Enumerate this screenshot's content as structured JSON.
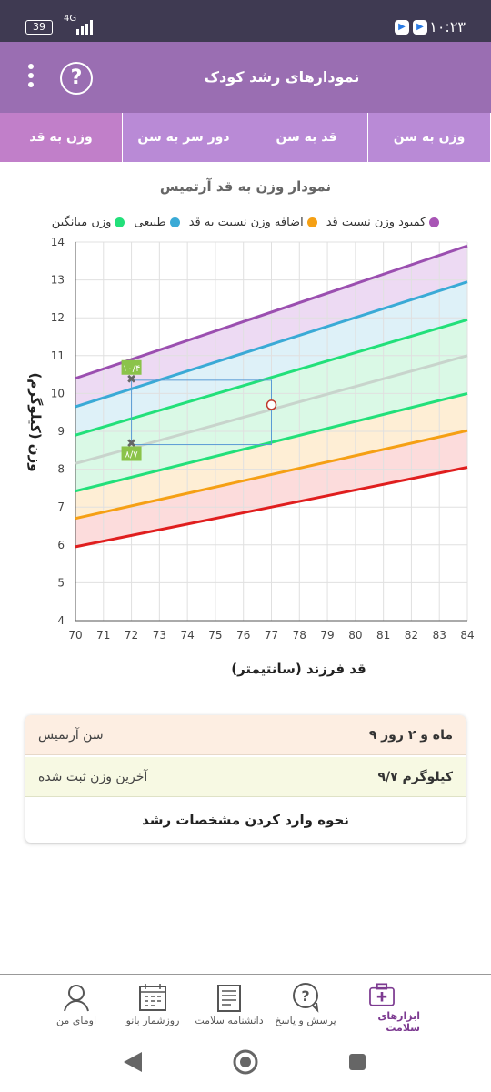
{
  "status_bar": {
    "battery": "39",
    "network": "4G",
    "time": "۱۰:۲۳"
  },
  "app_bar": {
    "title": "نمودارهای رشد کودک",
    "help_icon": "question-circle-icon",
    "menu_icon": "kebab-menu-icon"
  },
  "tabs": [
    {
      "label": "وزن به سن",
      "active": false
    },
    {
      "label": "قد به سن",
      "active": false
    },
    {
      "label": "دور سر به سن",
      "active": false
    },
    {
      "label": "وزن به قد",
      "active": true
    }
  ],
  "chart_title": "نمودار وزن به قد  آرتمیس",
  "legend": [
    {
      "label": "کمبود وزن نسبت قد",
      "color": "#a855b5"
    },
    {
      "label": "اضافه وزن نسبت به قد",
      "color": "#3aaad6"
    },
    {
      "label": "طبیعی",
      "color": "#22e07a"
    },
    {
      "label": "وزن میانگین",
      "color": "#cccccc"
    }
  ],
  "chart_data": {
    "type": "line",
    "xlabel": "قد فرزند (سانتیمتر)",
    "ylabel": "وزن (کیلوگرم)",
    "xlim": [
      70,
      84
    ],
    "ylim": [
      4,
      14
    ],
    "x_ticks": [
      70,
      71,
      72,
      73,
      74,
      75,
      76,
      77,
      78,
      79,
      80,
      81,
      82,
      83,
      84
    ],
    "y_ticks": [
      4,
      5,
      6,
      7,
      8,
      9,
      10,
      11,
      12,
      13,
      14
    ],
    "grid": true,
    "series": [
      {
        "color": "#9b4fb0",
        "x": [
          70,
          84
        ],
        "y": [
          10.4,
          13.9
        ]
      },
      {
        "color": "#3aaad6",
        "x": [
          70,
          84
        ],
        "y": [
          9.65,
          12.95
        ]
      },
      {
        "color": "#22e07a",
        "x": [
          70,
          84
        ],
        "y": [
          8.9,
          11.95
        ]
      },
      {
        "color": "#c8d4cc",
        "x": [
          70,
          84
        ],
        "y": [
          8.15,
          11.0
        ]
      },
      {
        "color": "#22e07a",
        "x": [
          70,
          84
        ],
        "y": [
          7.42,
          10.0
        ]
      },
      {
        "color": "#f5a014",
        "x": [
          70,
          84
        ],
        "y": [
          6.7,
          9.02
        ]
      },
      {
        "color": "#e01e1e",
        "x": [
          70,
          84
        ],
        "y": [
          5.95,
          8.05
        ]
      }
    ],
    "bands": [
      {
        "color": "#e7cdef",
        "between": [
          0,
          1
        ]
      },
      {
        "color": "#d3ecf5",
        "between": [
          1,
          2
        ]
      },
      {
        "color": "#cdf7de",
        "between": [
          2,
          4
        ]
      },
      {
        "color": "#fde8c7",
        "between": [
          4,
          5
        ]
      },
      {
        "color": "#fbd0d0",
        "between": [
          5,
          6
        ]
      }
    ],
    "markers": [
      {
        "x": 72,
        "y": 10.4,
        "label": "۱۰/۴"
      },
      {
        "x": 72,
        "y": 8.7,
        "label": "۸/۷"
      }
    ],
    "point": {
      "x": 77,
      "y": 9.7
    },
    "highlight_box": {
      "x0": 72,
      "x1": 77,
      "y0": 8.65,
      "y1": 10.35
    }
  },
  "info": {
    "age_label": "سن  آرتمیس",
    "age_value": "۹ ماه و ۲ روز",
    "weight_label": "آخرین وزن ثبت شده",
    "weight_value": "۹/۷ کیلوگرم",
    "guide_link": "نحوه وارد کردن مشخصات رشد"
  },
  "bottom_nav": [
    {
      "label": "ابزارهای سلامت",
      "icon": "health-kit-icon",
      "active": true
    },
    {
      "label": "پرسش و پاسخ",
      "icon": "question-bubble-icon",
      "active": false
    },
    {
      "label": "دانشنامه سلامت",
      "icon": "encyclopedia-icon",
      "active": false
    },
    {
      "label": "روزشمار بانو",
      "icon": "calendar-icon",
      "active": false
    },
    {
      "label": "اومای من",
      "icon": "profile-icon",
      "active": false
    }
  ]
}
